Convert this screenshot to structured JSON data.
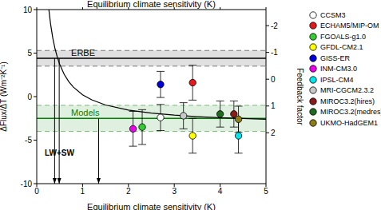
{
  "chart_data": {
    "type": "scatter",
    "title": "Equilibrium climate sensitivity (K)",
    "x_label": "Equilibrium climate sensitivity (K)",
    "y_label": "ΔFlux/ΔT (Wm⁻²K⁻¹)",
    "y2_label": "Feedback factor",
    "xlim": [
      0,
      5
    ],
    "xticks": [
      0,
      1,
      2,
      3,
      4,
      5
    ],
    "ylim": [
      -10,
      10
    ],
    "yticks": [
      -10,
      -5,
      0,
      5,
      10
    ],
    "y2lim": [
      3.9,
      -2.6
    ],
    "y2ticks": [
      -2,
      -1,
      0,
      1,
      2
    ],
    "series": [
      {
        "name": "CCSM3",
        "color": "#ffffff",
        "marker": "circle",
        "x": [
          2.7
        ],
        "values": [
          -2.4
        ],
        "error": [
          1.5
        ]
      },
      {
        "name": "ECHAM5/MIP-OM",
        "color": "#e31a1c",
        "marker": "circle",
        "x": [
          3.4
        ],
        "values": [
          1.6
        ],
        "error": [
          2.0
        ]
      },
      {
        "name": "FGOALS-g1.0",
        "color": "#33cc33",
        "marker": "circle",
        "x": [
          2.3
        ],
        "values": [
          -3.5
        ],
        "error": [
          2.0
        ]
      },
      {
        "name": "GFDL-CM2.1",
        "color": "#ffff00",
        "marker": "circle",
        "x": [
          3.4
        ],
        "values": [
          -4.5
        ],
        "error": [
          2.0
        ]
      },
      {
        "name": "GISS-ER",
        "color": "#0000dd",
        "marker": "circle",
        "x": [
          2.7
        ],
        "values": [
          1.4
        ],
        "error": [
          1.5
        ]
      },
      {
        "name": "INM-CM3.0",
        "color": "#ee00ee",
        "marker": "circle",
        "x": [
          2.1
        ],
        "values": [
          -3.7
        ],
        "error": [
          2.0
        ]
      },
      {
        "name": "IPSL-CM4",
        "color": "#00e5ee",
        "marker": "circle",
        "x": [
          4.4
        ],
        "values": [
          -4.5
        ],
        "error": [
          2.0
        ]
      },
      {
        "name": "MRI-CGCM2.3.2",
        "color": "#c8c8c8",
        "marker": "circle",
        "x": [
          3.2
        ],
        "values": [
          -2.2
        ],
        "error": [
          1.5
        ]
      },
      {
        "name": "MIROC3.2(hires)",
        "color": "#8b1a1a",
        "marker": "circle",
        "x": [
          4.3
        ],
        "values": [
          -2.0
        ],
        "error": [
          1.5
        ]
      },
      {
        "name": "MIROC3.2(medres)",
        "color": "#1f6b1f",
        "marker": "circle",
        "x": [
          4.0
        ],
        "values": [
          -2.0
        ],
        "error": [
          1.5
        ]
      },
      {
        "name": "UKMO-HadGEM1",
        "color": "#8b7d1a",
        "marker": "circle",
        "x": [
          4.4
        ],
        "values": [
          -2.6
        ],
        "error": [
          1.5
        ]
      }
    ],
    "curve": {
      "color": "#000000",
      "x": [
        0.26,
        0.3,
        0.35,
        0.4,
        0.45,
        0.5,
        0.6,
        0.7,
        0.8,
        1.0,
        1.2,
        1.5,
        2.0,
        2.5,
        3.0,
        3.5,
        4.0,
        4.5,
        5.0
      ],
      "values": [
        10.2,
        8.4,
        6.73,
        5.48,
        4.5,
        3.72,
        2.55,
        1.71,
        1.09,
        0.21,
        -0.37,
        -0.96,
        -1.54,
        -1.9,
        -2.13,
        -2.3,
        -2.42,
        -2.52,
        -2.6
      ]
    },
    "bands": [
      {
        "name": "ERBE",
        "color": "#000000",
        "value": 4.4,
        "lower": 3.5,
        "upper": 5.3
      },
      {
        "name": "Models",
        "color": "#008000",
        "value": -2.5,
        "lower": -4.0,
        "upper": -1.0
      }
    ],
    "arrows": {
      "label": "LW+SW",
      "color": "#000000",
      "x": [
        0.39,
        0.49,
        1.35
      ],
      "from": [
        4.4,
        4.4,
        -2.5
      ]
    }
  }
}
